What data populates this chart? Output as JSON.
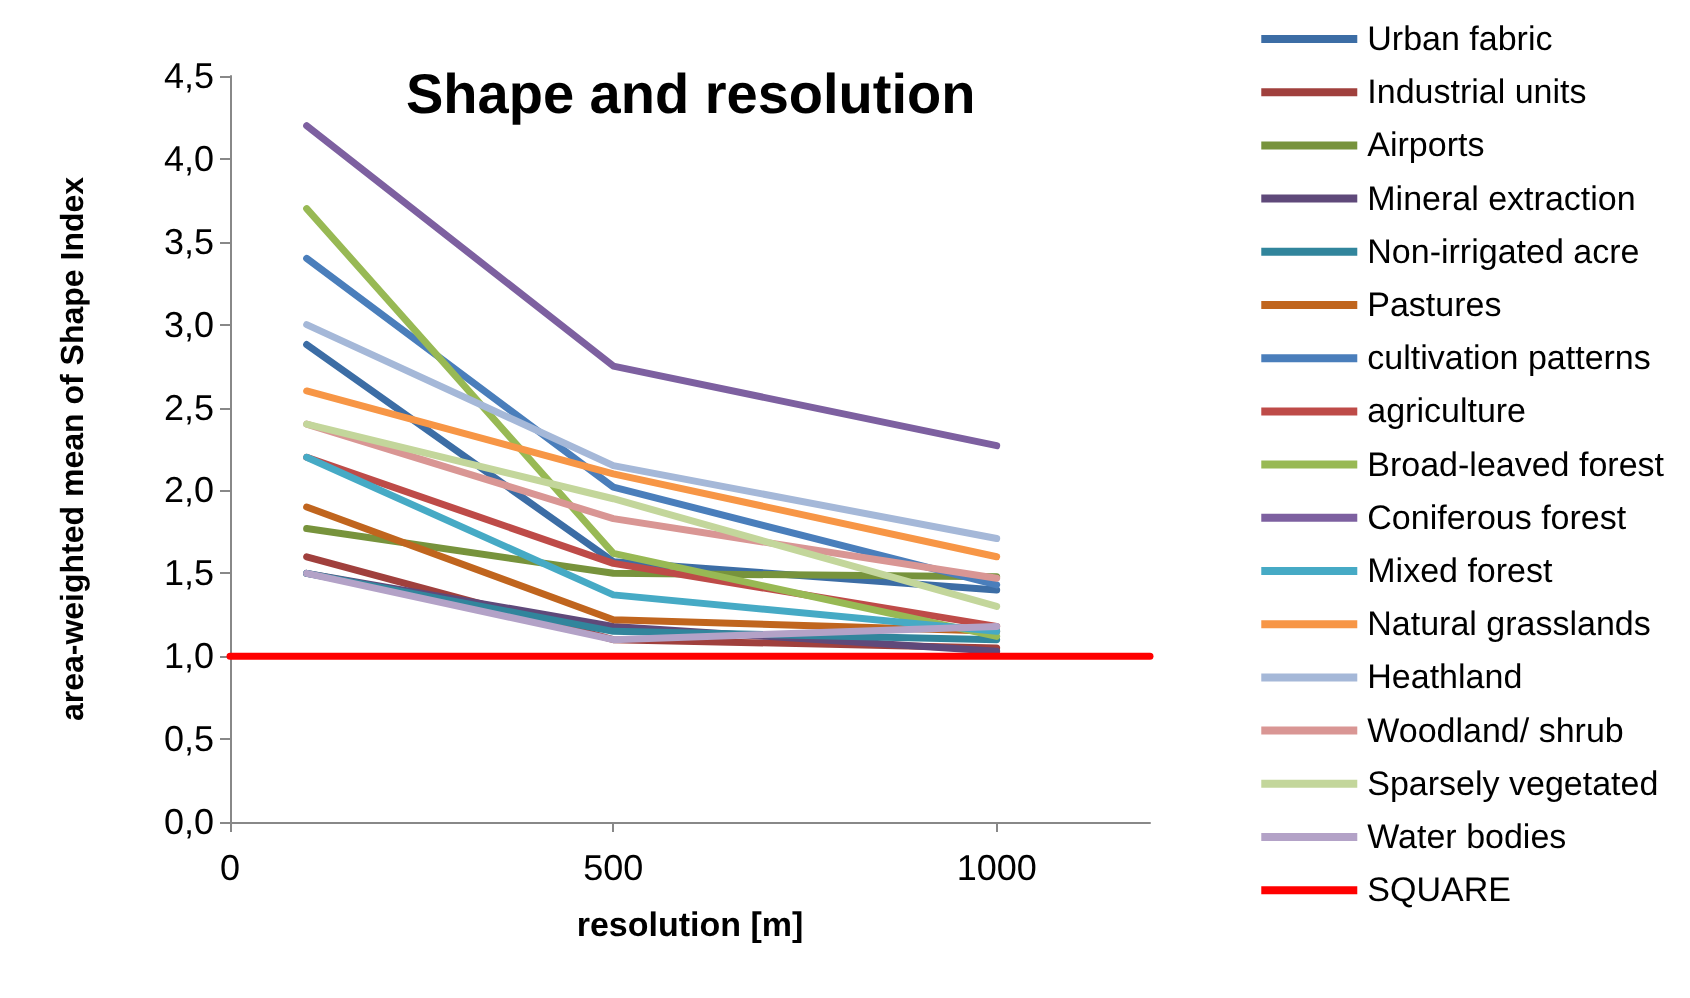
{
  "chart_data": {
    "type": "line",
    "title": "Shape and resolution",
    "xlabel": "resolution [m]",
    "ylabel": "area-weighted mean of Shape Index",
    "x": [
      100,
      500,
      1000
    ],
    "xlim": [
      0,
      1200
    ],
    "xticks": [
      0,
      500,
      1000
    ],
    "ylim": [
      0,
      4.5
    ],
    "yticks": [
      {
        "value": 0,
        "label": "0,0"
      },
      {
        "value": 0.5,
        "label": "0,5"
      },
      {
        "value": 1,
        "label": "1,0"
      },
      {
        "value": 1.5,
        "label": "1,5"
      },
      {
        "value": 2,
        "label": "2,0"
      },
      {
        "value": 2.5,
        "label": "2,5"
      },
      {
        "value": 3,
        "label": "3,0"
      },
      {
        "value": 3.5,
        "label": "3,5"
      },
      {
        "value": 4,
        "label": "4,0"
      },
      {
        "value": 4.5,
        "label": "4,5"
      }
    ],
    "grid": false,
    "legend": "right",
    "marker": "none",
    "line_style": "solid",
    "series": [
      {
        "name": "Urban fabric",
        "color": "#3c6da5",
        "values": [
          2.88,
          1.57,
          1.4
        ]
      },
      {
        "name": "Industrial units",
        "color": "#a0403d",
        "values": [
          1.6,
          1.1,
          1.05
        ]
      },
      {
        "name": "Airports",
        "color": "#77933c",
        "values": [
          1.77,
          1.5,
          1.48
        ]
      },
      {
        "name": "Mineral extraction",
        "color": "#5f497a",
        "values": [
          1.5,
          1.18,
          1.03
        ]
      },
      {
        "name": "Non-irrigated acre",
        "color": "#31859c",
        "values": [
          1.5,
          1.15,
          1.1
        ]
      },
      {
        "name": "Pastures",
        "color": "#c0651e",
        "values": [
          1.9,
          1.22,
          1.15
        ]
      },
      {
        "name": "cultivation patterns",
        "color": "#4a7ebb",
        "values": [
          3.4,
          2.02,
          1.43
        ]
      },
      {
        "name": "agriculture",
        "color": "#be4b48",
        "values": [
          2.2,
          1.56,
          1.18
        ]
      },
      {
        "name": "Broad-leaved forest",
        "color": "#98b954",
        "values": [
          3.7,
          1.62,
          1.12
        ]
      },
      {
        "name": "Coniferous forest",
        "color": "#7d60a0",
        "values": [
          4.2,
          2.75,
          2.27
        ]
      },
      {
        "name": "Mixed forest",
        "color": "#46aac5",
        "values": [
          2.2,
          1.37,
          1.15
        ]
      },
      {
        "name": "Natural grasslands",
        "color": "#f79646",
        "values": [
          2.6,
          2.1,
          1.6
        ]
      },
      {
        "name": "Heathland",
        "color": "#a5b8d8",
        "values": [
          3.0,
          2.15,
          1.71
        ]
      },
      {
        "name": "Woodland/ shrub",
        "color": "#d99694",
        "values": [
          2.4,
          1.83,
          1.47
        ]
      },
      {
        "name": "Sparsely vegetated",
        "color": "#c3d69b",
        "values": [
          2.4,
          1.95,
          1.3
        ]
      },
      {
        "name": "Water bodies",
        "color": "#b3a2c7",
        "values": [
          1.5,
          1.1,
          1.18
        ]
      },
      {
        "name": "SQUARE",
        "color": "#ff0000",
        "x": [
          0,
          1200
        ],
        "values": [
          1,
          1
        ]
      }
    ]
  }
}
